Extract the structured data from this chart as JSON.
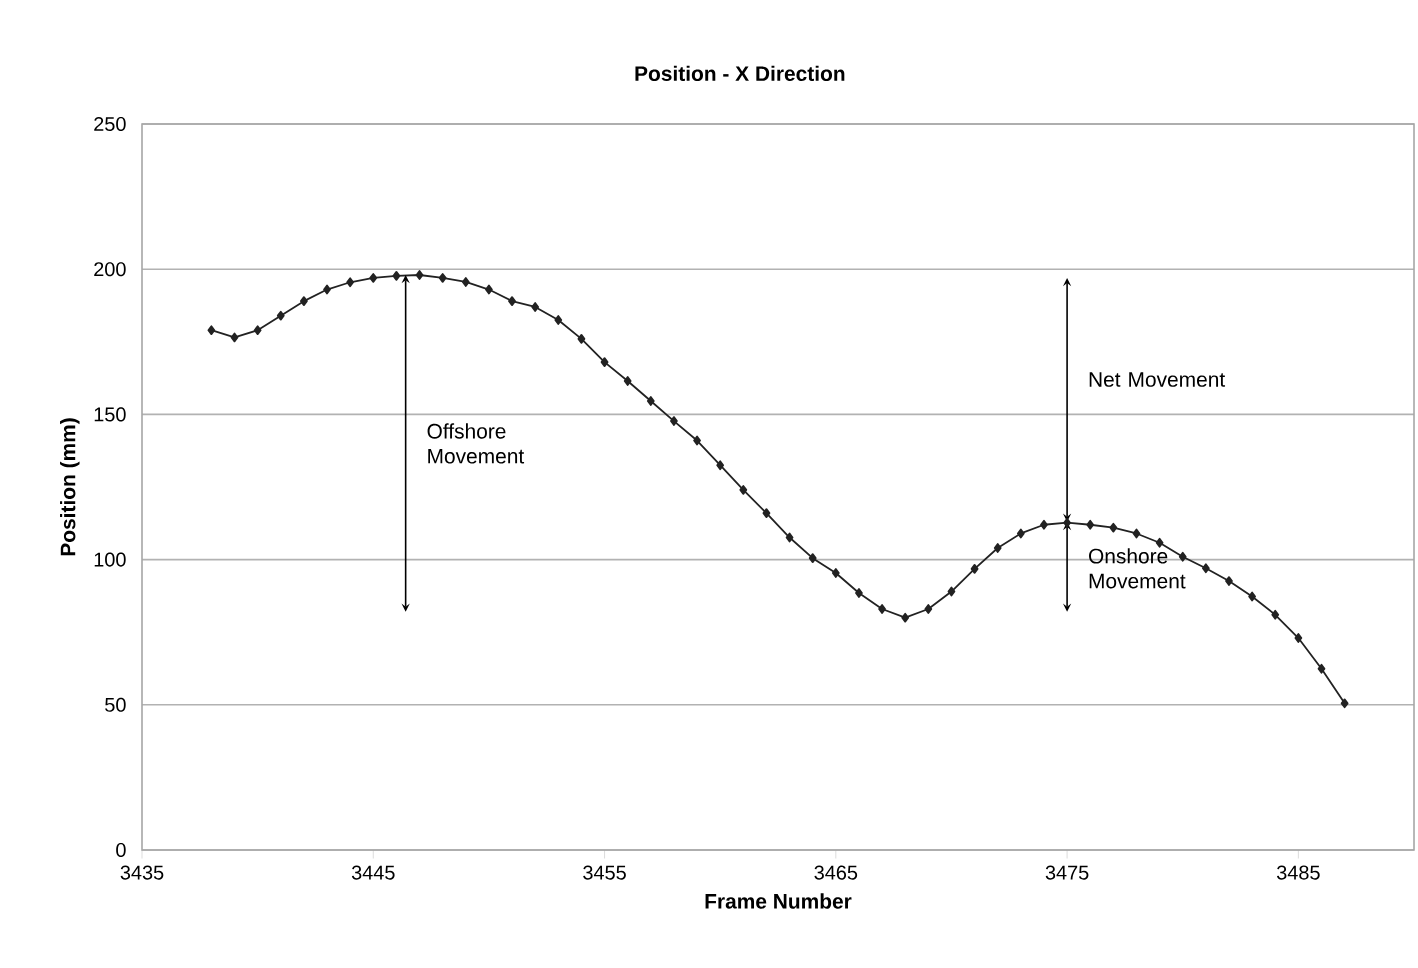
{
  "chart_data": {
    "type": "line",
    "title": "Position - X Direction",
    "xlabel": "Frame Number",
    "ylabel": "Position (mm)",
    "x": [
      3438,
      3439,
      3440,
      3441,
      3442,
      3443,
      3444,
      3445,
      3446,
      3447,
      3448,
      3449,
      3450,
      3451,
      3452,
      3453,
      3454,
      3455,
      3456,
      3457,
      3458,
      3459,
      3460,
      3461,
      3462,
      3463,
      3464,
      3465,
      3466,
      3467,
      3468,
      3469,
      3470,
      3471,
      3472,
      3473,
      3474,
      3475,
      3476,
      3477,
      3478,
      3479,
      3480,
      3481,
      3482,
      3483,
      3484,
      3485,
      3486,
      3487
    ],
    "values": [
      179,
      176.5,
      179,
      184,
      189,
      193,
      195.5,
      197,
      197.7,
      198,
      197,
      195.6,
      193,
      189,
      187,
      182.5,
      176,
      168,
      161.5,
      154.6,
      147.7,
      141,
      132.5,
      124,
      116,
      107.6,
      100.5,
      95.4,
      88.5,
      83,
      80,
      83,
      89,
      96.8,
      104,
      109,
      112,
      112.7,
      112,
      111,
      109,
      105.8,
      101,
      97,
      92.6,
      87.3,
      81,
      73,
      62.4,
      50.5
    ],
    "color": "#222222",
    "marker": "diamond",
    "line_style": "solid",
    "grid": "y",
    "xlim": [
      3435,
      3490
    ],
    "xticks": [
      3435,
      3445,
      3455,
      3465,
      3475,
      3485
    ],
    "ylim": [
      0,
      250
    ],
    "yticks": [
      0,
      50,
      100,
      150,
      200,
      250
    ],
    "annotations": [
      "Offshore Movement",
      "Net Movement",
      "Onshore Movement"
    ]
  }
}
